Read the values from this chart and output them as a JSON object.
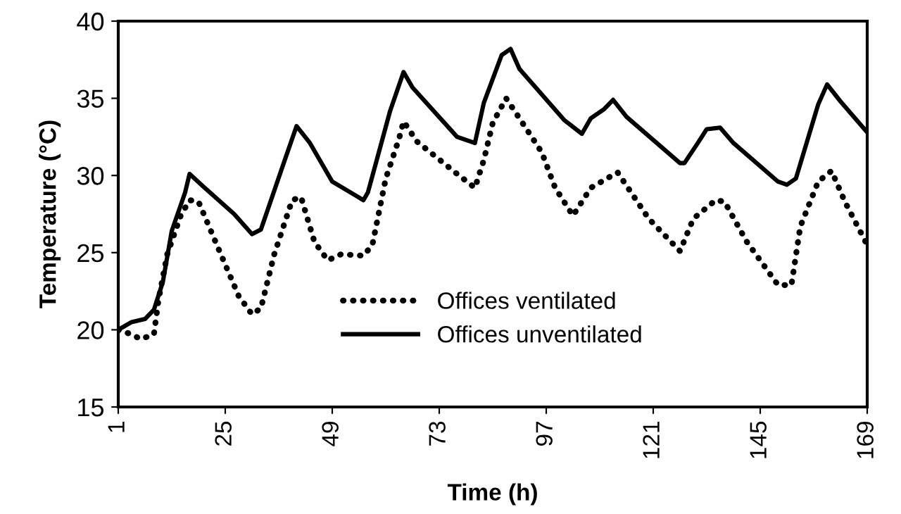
{
  "chart_data": {
    "type": "line",
    "xlabel": "Time (h)",
    "ylabel": "Temperature (°C)",
    "xlim": [
      1,
      169
    ],
    "xticks": [
      1,
      25,
      49,
      73,
      97,
      121,
      145,
      169
    ],
    "ylim": [
      15,
      40
    ],
    "yticks": [
      15,
      20,
      25,
      30,
      35,
      40
    ],
    "grid": false,
    "legend": "bottom",
    "marker": "none",
    "series": [
      {
        "name": "Offices ventilated",
        "color": "#000000",
        "line_style": "dotted",
        "x": [
          1,
          4,
          6,
          9,
          10,
          12,
          15,
          17,
          19,
          24,
          28,
          31,
          33,
          36,
          40,
          42,
          45,
          48,
          51,
          56,
          58,
          61,
          64,
          65,
          68,
          77,
          81,
          83,
          85,
          88,
          91,
          96,
          99,
          103,
          107,
          113,
          120,
          127,
          130,
          135,
          137,
          142,
          149,
          152,
          154,
          158,
          161,
          164,
          169
        ],
        "values": [
          20.0,
          19.7,
          19.4,
          19.7,
          21.9,
          24.9,
          27.4,
          28.4,
          28.3,
          24.9,
          22.2,
          21.0,
          21.4,
          24.9,
          28.4,
          28.6,
          25.7,
          24.5,
          24.9,
          24.8,
          25.5,
          29.8,
          32.4,
          33.5,
          32.2,
          30.1,
          29.2,
          31.0,
          33.4,
          35.0,
          33.7,
          31.5,
          29.2,
          27.4,
          29.2,
          30.2,
          27.2,
          25.1,
          27.2,
          28.4,
          28.3,
          25.7,
          22.9,
          22.9,
          26.7,
          29.6,
          30.3,
          28.3,
          25.5
        ]
      },
      {
        "name": "Offices unventilated",
        "color": "#000000",
        "line_style": "solid",
        "x": [
          1,
          4,
          7,
          9,
          11,
          13,
          16,
          17,
          20,
          27,
          31,
          33,
          38,
          41,
          44,
          49,
          56,
          57,
          62,
          65,
          67,
          77,
          81,
          83,
          87,
          89,
          91,
          101,
          105,
          107,
          110,
          112,
          115,
          127,
          128,
          131,
          133,
          136,
          139,
          149,
          151,
          153,
          158,
          160,
          163,
          169
        ],
        "values": [
          20.0,
          20.5,
          20.7,
          21.3,
          23.1,
          26.4,
          28.9,
          30.1,
          29.3,
          27.5,
          26.2,
          26.5,
          30.7,
          33.2,
          32.1,
          29.6,
          28.4,
          28.9,
          34.2,
          36.7,
          35.7,
          32.5,
          32.1,
          34.7,
          37.8,
          38.2,
          36.9,
          33.6,
          32.7,
          33.7,
          34.3,
          34.9,
          33.8,
          30.8,
          30.8,
          32.1,
          33.0,
          33.1,
          32.1,
          29.6,
          29.4,
          29.8,
          34.6,
          35.9,
          34.8,
          32.8
        ]
      }
    ]
  }
}
